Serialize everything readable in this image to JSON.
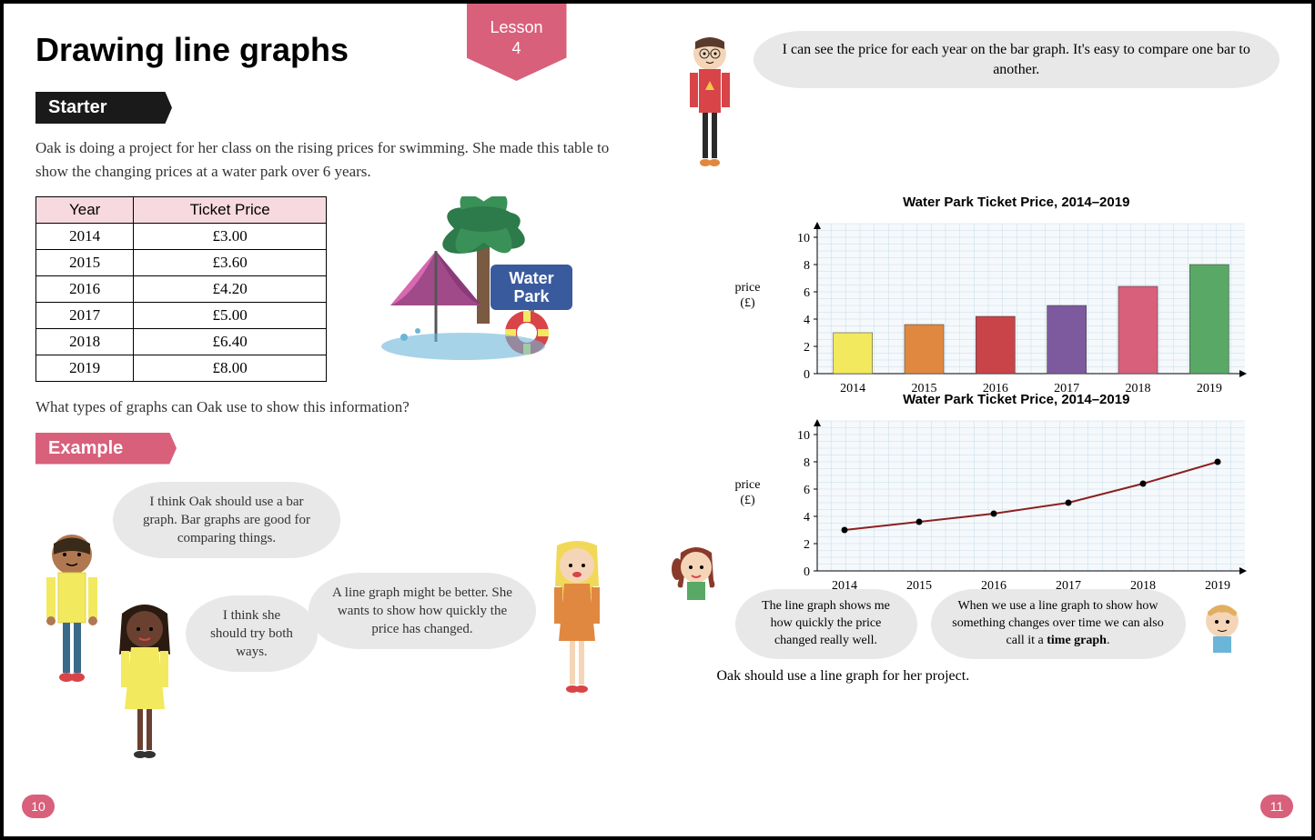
{
  "page": {
    "title": "Drawing line graphs",
    "lesson_label": "Lesson",
    "lesson_number": "4",
    "page_left": "10",
    "page_right": "11"
  },
  "starter": {
    "label": "Starter",
    "intro": "Oak is doing a project for her class on the rising prices for swimming. She made this table to show the changing prices at a water park over 6 years.",
    "question": "What types of graphs can Oak use to show this information?",
    "sign_line1": "Water",
    "sign_line2": "Park"
  },
  "table": {
    "columns": [
      "Year",
      "Ticket Price"
    ],
    "rows": [
      [
        "2014",
        "£3.00"
      ],
      [
        "2015",
        "£3.60"
      ],
      [
        "2016",
        "£4.20"
      ],
      [
        "2017",
        "£5.00"
      ],
      [
        "2018",
        "£6.40"
      ],
      [
        "2019",
        "£8.00"
      ]
    ],
    "header_bg": "#f7d9e0"
  },
  "example": {
    "label": "Example",
    "bubble1": "I think Oak should use a bar graph. Bar graphs are good for comparing things.",
    "bubble2": "I think she should try both ways.",
    "bubble3": "A line graph might be better. She wants to show how quickly the price has changed."
  },
  "right": {
    "top_bubble": "I can see the price for each year on the bar graph. It's easy to compare one bar to another.",
    "bottom_bubble1": "The line graph shows me how quickly the price changed really well.",
    "bottom_bubble2_prefix": "When we use a line graph to show how something changes over time we can also call it a ",
    "bottom_bubble2_bold": "time graph",
    "bottom_bubble2_suffix": ".",
    "conclusion": "Oak should use a line graph for her project."
  },
  "bar_chart": {
    "type": "bar",
    "title": "Water Park Ticket Price, 2014–2019",
    "ylabel_line1": "price",
    "ylabel_line2": "(£)",
    "categories": [
      "2014",
      "2015",
      "2016",
      "2017",
      "2018",
      "2019"
    ],
    "values": [
      3.0,
      3.6,
      4.2,
      5.0,
      6.4,
      8.0
    ],
    "bar_colors": [
      "#f2e95e",
      "#e08840",
      "#c84448",
      "#7d5a9e",
      "#d8607b",
      "#5aa866"
    ],
    "ylim": [
      0,
      11
    ],
    "yticks": [
      0,
      2,
      4,
      6,
      8,
      10
    ],
    "grid_color": "#c8dce8",
    "background": "#f5f9fc",
    "bar_width": 0.55
  },
  "line_chart": {
    "type": "line",
    "title": "Water Park Ticket Price, 2014–2019",
    "ylabel_line1": "price",
    "ylabel_line2": "(£)",
    "categories": [
      "2014",
      "2015",
      "2016",
      "2017",
      "2018",
      "2019"
    ],
    "values": [
      3.0,
      3.6,
      4.2,
      5.0,
      6.4,
      8.0
    ],
    "line_color": "#8b2020",
    "marker_color": "#000000",
    "ylim": [
      0,
      11
    ],
    "yticks": [
      0,
      2,
      4,
      6,
      8,
      10
    ],
    "grid_color": "#c8dce8",
    "background": "#f5f9fc"
  }
}
